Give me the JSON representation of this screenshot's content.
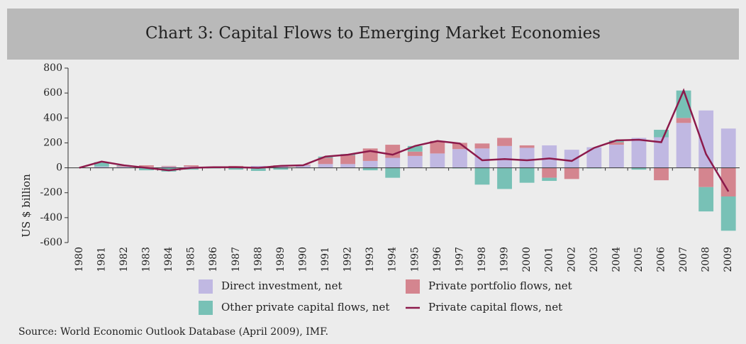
{
  "chart_data": {
    "type": "bar",
    "stacked": true,
    "title": "Chart 3: Capital Flows to Emerging Market Economies",
    "ylabel": "US $ billion",
    "source": "Source: World Economic Outlook Database (April 2009), IMF.",
    "categories": [
      "1980",
      "1981",
      "1982",
      "1983",
      "1984",
      "1985",
      "1986",
      "1987",
      "1988",
      "1989",
      "1990",
      "1991",
      "1992",
      "1993",
      "1994",
      "1995",
      "1996",
      "1997",
      "1998",
      "1999",
      "2000",
      "2001",
      "2002",
      "2003",
      "2004",
      "2005",
      "2006",
      "2007",
      "2008",
      "2009"
    ],
    "series": [
      {
        "name": "Direct investment, net",
        "color": "#c0b8e2",
        "type": "bar",
        "values": [
          0,
          10,
          10,
          5,
          10,
          10,
          10,
          10,
          15,
          15,
          20,
          30,
          30,
          55,
          80,
          95,
          115,
          150,
          155,
          175,
          160,
          180,
          145,
          165,
          185,
          240,
          245,
          360,
          460,
          315
        ]
      },
      {
        "name": "Private portfolio flows, net",
        "color": "#d4858f",
        "type": "bar",
        "values": [
          0,
          0,
          5,
          15,
          5,
          10,
          0,
          5,
          -5,
          5,
          5,
          50,
          70,
          100,
          105,
          35,
          100,
          50,
          40,
          65,
          20,
          -80,
          -90,
          0,
          20,
          0,
          -100,
          40,
          -155,
          -230
        ]
      },
      {
        "name": "Other private capital flows, net",
        "color": "#78c1b6",
        "type": "bar",
        "values": [
          0,
          35,
          5,
          -20,
          -30,
          -15,
          -5,
          -15,
          -20,
          -15,
          0,
          10,
          10,
          -20,
          -80,
          45,
          0,
          -5,
          -135,
          -170,
          -120,
          -25,
          0,
          -5,
          15,
          -15,
          60,
          220,
          -195,
          -275
        ]
      },
      {
        "name": "Private capital flows, net",
        "color": "#8c1a4b",
        "type": "line",
        "values": [
          0,
          50,
          20,
          0,
          -20,
          0,
          5,
          5,
          0,
          15,
          20,
          90,
          105,
          135,
          105,
          175,
          215,
          195,
          60,
          70,
          60,
          75,
          55,
          160,
          220,
          225,
          205,
          620,
          110,
          -190
        ]
      }
    ],
    "ylim": [
      -600,
      800
    ],
    "yticks": [
      -600,
      -400,
      -200,
      0,
      200,
      400,
      600,
      800
    ]
  }
}
